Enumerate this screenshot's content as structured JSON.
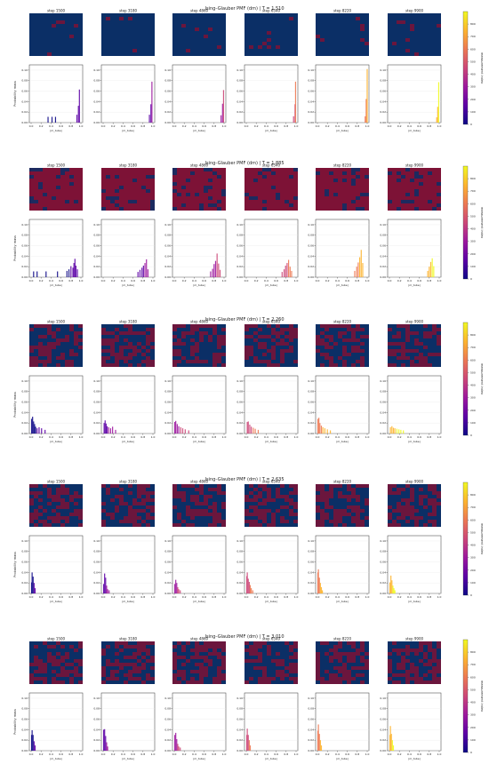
{
  "colors": {
    "lattice_blue": "#0b2f66",
    "lattice_red": "#7d1236",
    "cmap": [
      "#0d0887",
      "#5c01a6",
      "#9c179e",
      "#cc4778",
      "#ed7953",
      "#fdb42f",
      "#f0f921"
    ]
  },
  "chart_data": {
    "type": "bar",
    "ylabel": "Probability mass",
    "xlabel": "|m_tube|",
    "xlim": [
      0.0,
      1.0
    ],
    "ylim": [
      0.0,
      0.11
    ],
    "x_ticks": [
      "0.0",
      "0.2",
      "0.4",
      "0.6",
      "0.8",
      "1.0"
    ],
    "y_ticks": [
      "0.00",
      "0.02",
      "0.04",
      "0.06",
      "0.08",
      "0.10"
    ],
    "colorbar": {
      "label": "measurement index",
      "range": [
        0,
        900
      ],
      "ticks": [
        "0",
        "100",
        "200",
        "300",
        "400",
        "500",
        "600",
        "700",
        "800"
      ]
    },
    "steps": [
      "step 1500",
      "step 3180",
      "step 4860",
      "step 6540",
      "step 8220",
      "step 9900"
    ],
    "panels": [
      {
        "title": "Ising–Glauber PMF (dm)  |  T = 1.510",
        "lattice_red_fraction": 0.04,
        "bars": [
          [
            [
              0.34,
              0.011
            ],
            [
              0.42,
              0.011
            ],
            [
              0.49,
              0.011
            ],
            [
              0.92,
              0.015
            ],
            [
              0.95,
              0.032
            ],
            [
              0.97,
              0.063
            ]
          ],
          [
            [
              0.93,
              0.015
            ],
            [
              0.96,
              0.035
            ],
            [
              0.98,
              0.078
            ]
          ],
          [
            [
              0.94,
              0.014
            ],
            [
              0.97,
              0.036
            ],
            [
              0.99,
              0.062
            ]
          ],
          [
            [
              0.95,
              0.012
            ],
            [
              0.98,
              0.035
            ],
            [
              0.99,
              0.078
            ]
          ],
          [
            [
              0.96,
              0.012
            ],
            [
              0.98,
              0.045
            ],
            [
              1.0,
              0.102
            ]
          ],
          [
            [
              0.95,
              0.01
            ],
            [
              0.97,
              0.03
            ],
            [
              0.99,
              0.077
            ]
          ]
        ]
      },
      {
        "title": "Ising–Glauber PMF (dm)  |  T = 1.885",
        "lattice_red_fraction": 0.86,
        "bars": [
          [
            [
              0.05,
              0.011
            ],
            [
              0.12,
              0.011
            ],
            [
              0.3,
              0.011
            ],
            [
              0.53,
              0.011
            ],
            [
              0.72,
              0.012
            ],
            [
              0.76,
              0.015
            ],
            [
              0.8,
              0.021
            ],
            [
              0.84,
              0.018
            ],
            [
              0.86,
              0.027
            ],
            [
              0.88,
              0.035
            ],
            [
              0.9,
              0.022
            ],
            [
              0.93,
              0.015
            ]
          ],
          [
            [
              0.7,
              0.01
            ],
            [
              0.74,
              0.014
            ],
            [
              0.78,
              0.018
            ],
            [
              0.81,
              0.022
            ],
            [
              0.84,
              0.027
            ],
            [
              0.87,
              0.034
            ],
            [
              0.9,
              0.015
            ]
          ],
          [
            [
              0.73,
              0.011
            ],
            [
              0.77,
              0.016
            ],
            [
              0.8,
              0.025
            ],
            [
              0.83,
              0.031
            ],
            [
              0.86,
              0.045
            ],
            [
              0.89,
              0.026
            ],
            [
              0.92,
              0.014
            ]
          ],
          [
            [
              0.72,
              0.01
            ],
            [
              0.76,
              0.015
            ],
            [
              0.79,
              0.022
            ],
            [
              0.82,
              0.027
            ],
            [
              0.85,
              0.033
            ],
            [
              0.88,
              0.02
            ],
            [
              0.91,
              0.012
            ]
          ],
          [
            [
              0.75,
              0.012
            ],
            [
              0.79,
              0.02
            ],
            [
              0.82,
              0.028
            ],
            [
              0.85,
              0.038
            ],
            [
              0.88,
              0.052
            ],
            [
              0.91,
              0.027
            ]
          ],
          [
            [
              0.77,
              0.012
            ],
            [
              0.8,
              0.02
            ],
            [
              0.83,
              0.029
            ],
            [
              0.86,
              0.036
            ],
            [
              0.89,
              0.021
            ]
          ]
        ]
      },
      {
        "title": "Ising–Glauber PMF (dm)  |  T = 2.260",
        "lattice_red_fraction": 0.5,
        "bars": [
          [
            [
              0.01,
              0.028
            ],
            [
              0.03,
              0.032
            ],
            [
              0.05,
              0.023
            ],
            [
              0.07,
              0.018
            ],
            [
              0.09,
              0.013
            ],
            [
              0.12,
              0.01
            ],
            [
              0.16,
              0.012
            ],
            [
              0.21,
              0.01
            ],
            [
              0.28,
              0.007
            ]
          ],
          [
            [
              0.02,
              0.02
            ],
            [
              0.04,
              0.025
            ],
            [
              0.06,
              0.019
            ],
            [
              0.08,
              0.014
            ],
            [
              0.11,
              0.012
            ],
            [
              0.15,
              0.01
            ],
            [
              0.19,
              0.013
            ],
            [
              0.25,
              0.007
            ]
          ],
          [
            [
              0.01,
              0.022
            ],
            [
              0.03,
              0.024
            ],
            [
              0.06,
              0.018
            ],
            [
              0.09,
              0.014
            ],
            [
              0.13,
              0.012
            ],
            [
              0.17,
              0.01
            ],
            [
              0.22,
              0.008
            ],
            [
              0.29,
              0.006
            ]
          ],
          [
            [
              0.02,
              0.022
            ],
            [
              0.04,
              0.023
            ],
            [
              0.07,
              0.017
            ],
            [
              0.1,
              0.013
            ],
            [
              0.14,
              0.011
            ],
            [
              0.18,
              0.009
            ],
            [
              0.24,
              0.007
            ]
          ],
          [
            [
              0.01,
              0.028
            ],
            [
              0.03,
              0.03
            ],
            [
              0.05,
              0.02
            ],
            [
              0.08,
              0.015
            ],
            [
              0.11,
              0.012
            ],
            [
              0.15,
              0.01
            ],
            [
              0.2,
              0.008
            ],
            [
              0.26,
              0.006
            ]
          ],
          [
            [
              0.02,
              0.012
            ],
            [
              0.05,
              0.014
            ],
            [
              0.08,
              0.011
            ],
            [
              0.11,
              0.01
            ],
            [
              0.15,
              0.009
            ],
            [
              0.19,
              0.008
            ],
            [
              0.23,
              0.007
            ],
            [
              0.28,
              0.006
            ]
          ]
        ]
      },
      {
        "title": "Ising–Glauber PMF (dm)  |  T = 2.635",
        "lattice_red_fraction": 0.5,
        "bars": [
          [
            [
              0.01,
              0.021
            ],
            [
              0.02,
              0.04
            ],
            [
              0.04,
              0.032
            ],
            [
              0.06,
              0.02
            ],
            [
              0.08,
              0.01
            ]
          ],
          [
            [
              0.01,
              0.018
            ],
            [
              0.03,
              0.038
            ],
            [
              0.05,
              0.03
            ],
            [
              0.07,
              0.015
            ],
            [
              0.09,
              0.008
            ],
            [
              0.12,
              0.006
            ]
          ],
          [
            [
              0.01,
              0.018
            ],
            [
              0.03,
              0.026
            ],
            [
              0.05,
              0.02
            ],
            [
              0.07,
              0.012
            ],
            [
              0.09,
              0.008
            ],
            [
              0.12,
              0.006
            ]
          ],
          [
            [
              0.01,
              0.033
            ],
            [
              0.02,
              0.04
            ],
            [
              0.04,
              0.028
            ],
            [
              0.06,
              0.022
            ],
            [
              0.08,
              0.016
            ],
            [
              0.1,
              0.01
            ],
            [
              0.13,
              0.006
            ]
          ],
          [
            [
              0.01,
              0.04
            ],
            [
              0.02,
              0.046
            ],
            [
              0.04,
              0.03
            ],
            [
              0.06,
              0.02
            ],
            [
              0.08,
              0.012
            ],
            [
              0.1,
              0.006
            ]
          ],
          [
            [
              0.01,
              0.021
            ],
            [
              0.03,
              0.034
            ],
            [
              0.05,
              0.025
            ],
            [
              0.07,
              0.015
            ],
            [
              0.09,
              0.01
            ],
            [
              0.11,
              0.006
            ]
          ]
        ]
      },
      {
        "title": "Ising–Glauber PMF (dm)  |  T = 3.010",
        "lattice_red_fraction": 0.5,
        "bars": [
          [
            [
              0.01,
              0.03
            ],
            [
              0.02,
              0.039
            ],
            [
              0.04,
              0.03
            ],
            [
              0.06,
              0.018
            ],
            [
              0.08,
              0.01
            ]
          ],
          [
            [
              0.01,
              0.04
            ],
            [
              0.03,
              0.041
            ],
            [
              0.05,
              0.028
            ],
            [
              0.07,
              0.016
            ],
            [
              0.09,
              0.008
            ]
          ],
          [
            [
              0.01,
              0.03
            ],
            [
              0.03,
              0.034
            ],
            [
              0.05,
              0.022
            ],
            [
              0.07,
              0.013
            ],
            [
              0.09,
              0.008
            ],
            [
              0.12,
              0.006
            ]
          ],
          [
            [
              0.01,
              0.03
            ],
            [
              0.02,
              0.042
            ],
            [
              0.04,
              0.03
            ],
            [
              0.06,
              0.02
            ],
            [
              0.08,
              0.01
            ]
          ],
          [
            [
              0.01,
              0.038
            ],
            [
              0.02,
              0.05
            ],
            [
              0.04,
              0.032
            ],
            [
              0.06,
              0.02
            ],
            [
              0.08,
              0.01
            ]
          ],
          [
            [
              0.01,
              0.03
            ],
            [
              0.02,
              0.047
            ],
            [
              0.04,
              0.032
            ],
            [
              0.06,
              0.02
            ],
            [
              0.08,
              0.01
            ]
          ]
        ]
      }
    ]
  }
}
